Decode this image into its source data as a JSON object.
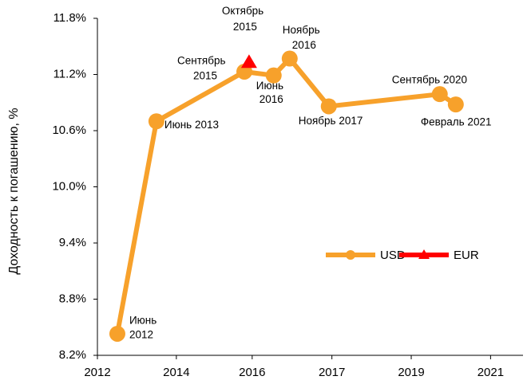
{
  "chart_data": {
    "type": "line",
    "ylabel": "Доходность к погашению, %",
    "xlim": [
      2011.91,
      2022.8
    ],
    "xticks": [
      {
        "value": 2011.91,
        "label": "2012"
      },
      {
        "value": 2013.93,
        "label": "2014"
      },
      {
        "value": 2015.87,
        "label": "2016"
      },
      {
        "value": 2017.91,
        "label": "2017"
      },
      {
        "value": 2019.94,
        "label": "2019"
      },
      {
        "value": 2021.97,
        "label": "2021"
      }
    ],
    "ylim": [
      8.2,
      11.8
    ],
    "yticks": [
      {
        "value": 8.2,
        "label": "8.2%"
      },
      {
        "value": 8.8,
        "label": "8.8%"
      },
      {
        "value": 9.4,
        "label": "9.4%"
      },
      {
        "value": 10.0,
        "label": "10.0%"
      },
      {
        "value": 10.6,
        "label": "10.6%"
      },
      {
        "value": 11.2,
        "label": "11.2%"
      },
      {
        "value": 11.8,
        "label": "11.8%"
      }
    ],
    "series": [
      {
        "name": "USD",
        "color": "#f7a12b",
        "marker": "circle",
        "x": [
          2012.42,
          2013.42,
          2015.67,
          2016.42,
          2016.83,
          2017.83,
          2020.67,
          2021.08
        ],
        "values": [
          8.43,
          10.7,
          11.23,
          11.19,
          11.37,
          10.86,
          10.99,
          10.88
        ],
        "point_labels": [
          [
            "Июнь",
            "2012"
          ],
          [
            "Июнь 2013"
          ],
          [
            "Сентябрь",
            "2015"
          ],
          [
            "Июнь",
            "2016"
          ],
          [
            "Ноябрь",
            "2016"
          ],
          [
            "Ноябрь 2017"
          ],
          [
            "Сентябрь 2020"
          ],
          [
            "Февраль  2021"
          ]
        ]
      },
      {
        "name": "EUR",
        "color": "#ff0000",
        "marker": "triangle",
        "x": [
          2015.79
        ],
        "values": [
          11.33
        ],
        "point_labels": [
          [
            "Октябрь",
            "2015"
          ]
        ]
      }
    ],
    "legend": "right"
  }
}
